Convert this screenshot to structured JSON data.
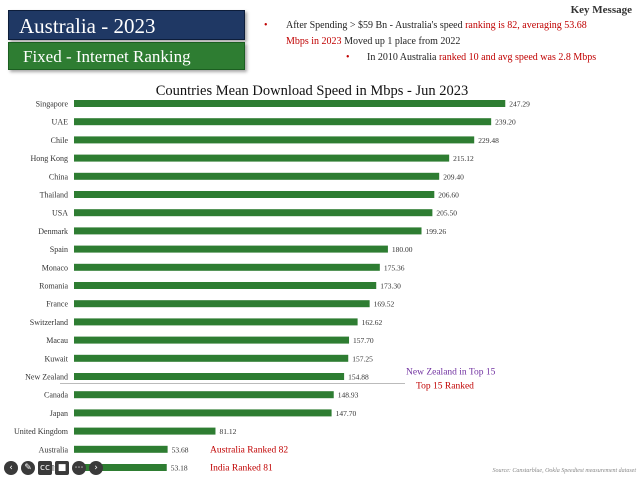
{
  "header": {
    "title": "Australia - 2023",
    "subtitle": "Fixed - Internet Ranking"
  },
  "key_message": {
    "heading": "Key Message",
    "line1_a": "After Spending > $59 Bn  - Australia's speed ",
    "line1_b": "ranking is 82, averaging 53.68",
    "line2_a": "Mbps in 2023",
    "line2_b": " Moved up 1 place from 2022",
    "line3_a": "In 2010 Australia ",
    "line3_b": "ranked 10 and avg speed was 2.8 Mbps"
  },
  "source": "Source: Canstarblue, Ookla Speedtest measurement dataset",
  "colors": {
    "bar": "#2e7d32",
    "title_bg": "#1f3864",
    "subtitle_bg": "#2e7d32",
    "accent_red": "#c00000",
    "accent_purple": "#7030a0"
  },
  "chart_data": {
    "type": "bar",
    "orientation": "horizontal",
    "title": "Countries Mean Download Speed in Mbps - Jun 2023",
    "xlabel": "",
    "ylabel": "",
    "categories": [
      "Singapore",
      "UAE",
      "Chile",
      "Hong Kong",
      "China",
      "Thailand",
      "USA",
      "Denmark",
      "Spain",
      "Monaco",
      "Romania",
      "France",
      "Switzerland",
      "Macau",
      "Kuwait",
      "New Zealand",
      "Canada",
      "Japan",
      "United Kingdom",
      "Australia",
      "India"
    ],
    "values": [
      247.29,
      239.2,
      229.48,
      215.12,
      209.4,
      206.6,
      205.5,
      199.26,
      180.0,
      175.36,
      173.3,
      169.52,
      162.62,
      157.7,
      157.25,
      154.88,
      148.93,
      147.7,
      81.12,
      53.68,
      53.18
    ],
    "value_labels": [
      "247.29",
      "239.20",
      "229.48",
      "215.12",
      "209.40",
      "206.60",
      "205.50",
      "199.26",
      "180.00",
      "175.36",
      "173.30",
      "169.52",
      "162.62",
      "157.70",
      "157.25",
      "154.88",
      "148.93",
      "147.70",
      "81.12",
      "53.68",
      "53.18"
    ],
    "xlim": [
      0,
      250
    ],
    "annotations": [
      {
        "text": "New Zealand in Top 15",
        "category": "New Zealand",
        "color": "#7030a0"
      },
      {
        "text": "Top 15 Ranked",
        "category": "New Zealand",
        "color": "#c00000"
      },
      {
        "text": "Australia Ranked 82",
        "category": "Australia",
        "color": "#c00000"
      },
      {
        "text": "India Ranked 81",
        "category": "India",
        "color": "#c00000"
      }
    ]
  }
}
